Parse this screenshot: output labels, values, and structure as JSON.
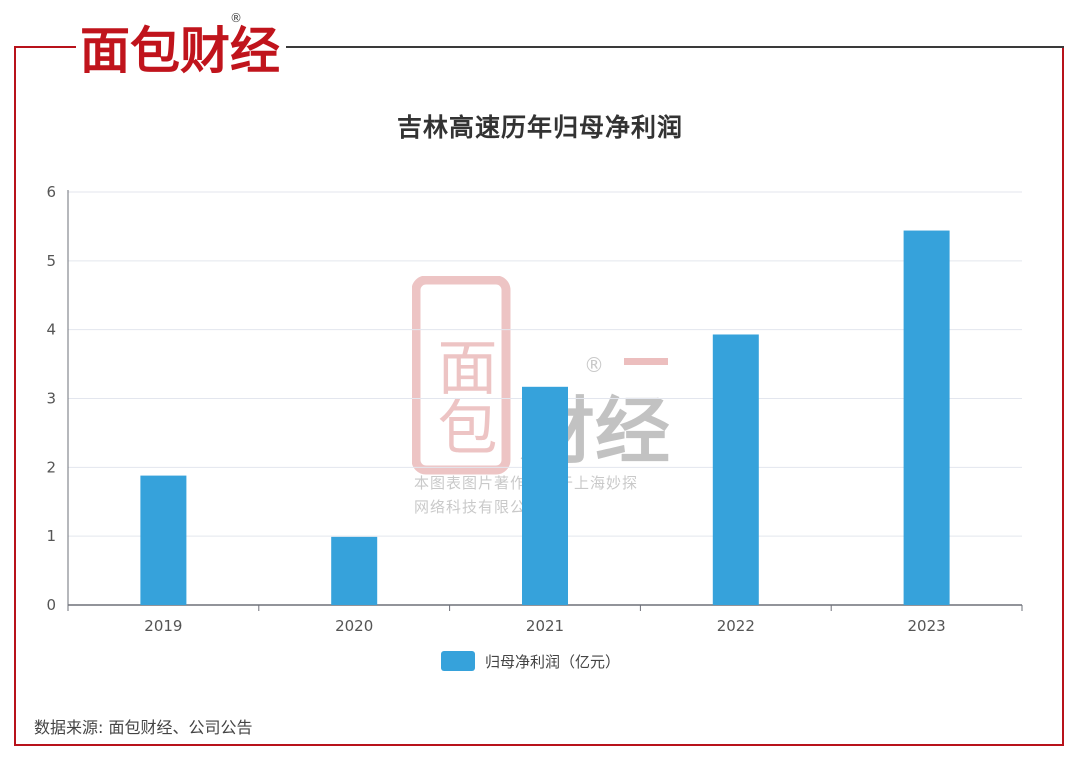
{
  "brand": {
    "name": "面包财经",
    "mark": "®"
  },
  "chart_data": {
    "type": "bar",
    "title": "吉林高速历年归母净利润",
    "categories": [
      "2019",
      "2020",
      "2021",
      "2022",
      "2023"
    ],
    "series": [
      {
        "name": "归母净利润（亿元）",
        "values": [
          1.88,
          0.99,
          3.17,
          3.93,
          5.44
        ],
        "color": "#36a2db"
      }
    ],
    "ylim": [
      0,
      6
    ],
    "yticks": [
      "0",
      "1",
      "2",
      "3",
      "4",
      "5",
      "6"
    ],
    "grid": true,
    "legend": "bottom-center"
  },
  "watermark": {
    "seal": "面包",
    "text": "财经",
    "mark": "®",
    "line1": "本图表图片著作权属于上海妙探",
    "line2": "网络科技有限公司"
  },
  "footer": {
    "source": "数据来源: 面包财经、公司公告"
  },
  "colors": {
    "frame": "#b8121b",
    "bar": "#36a2db",
    "brand_red": "#c0141c"
  }
}
